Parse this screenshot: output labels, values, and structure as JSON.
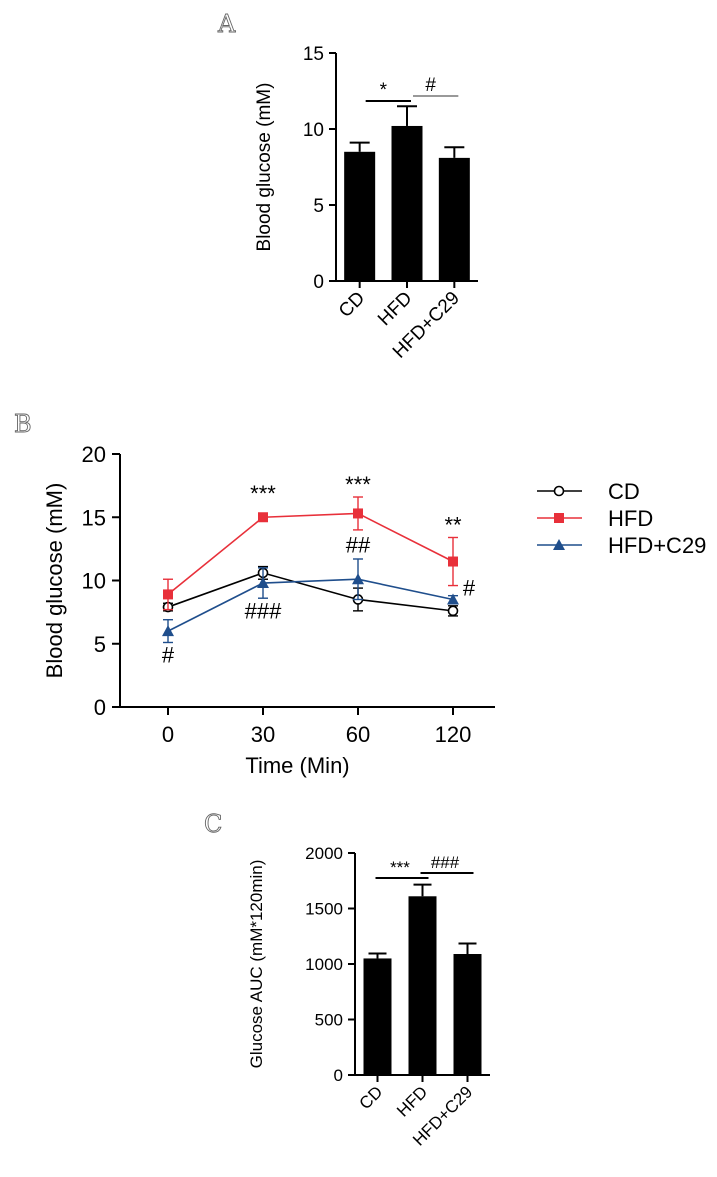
{
  "chart_data": [
    {
      "panel": "A",
      "type": "bar",
      "categories": [
        "CD",
        "HFD",
        "HFD+C29"
      ],
      "values": [
        8.5,
        10.2,
        8.1
      ],
      "errors": [
        0.6,
        1.3,
        0.7
      ],
      "ylabel": "Blood glucose  (mM)",
      "ylim": [
        0,
        15
      ],
      "yticks": [
        0,
        5,
        10,
        15
      ],
      "ytick_labels": [
        "0",
        "5",
        "10",
        "15"
      ],
      "color": "#000000",
      "significance": [
        {
          "from": 0,
          "to": 1,
          "label": "*",
          "color": "#000000"
        },
        {
          "from": 1,
          "to": 2,
          "label": "#",
          "color": "#999999"
        }
      ]
    },
    {
      "panel": "B",
      "type": "line",
      "x": [
        0,
        30,
        60,
        120
      ],
      "xtick_labels": [
        "0",
        "30",
        "60",
        "120"
      ],
      "xlabel": "Time (Min)",
      "ylabel": "Blood glucose (mM)",
      "ylim": [
        0,
        20
      ],
      "yticks": [
        0,
        5,
        10,
        15,
        20
      ],
      "ytick_labels": [
        "0",
        "5",
        "10",
        "15",
        "20"
      ],
      "legend_position": "right",
      "series": [
        {
          "name": "CD",
          "marker": "open-circle",
          "color": "#000000",
          "values": [
            7.9,
            10.6,
            8.5,
            7.6
          ],
          "errors": [
            0.3,
            0.5,
            0.9,
            0.4
          ]
        },
        {
          "name": "HFD",
          "marker": "square",
          "color": "#e8303a",
          "values": [
            8.9,
            15.0,
            15.3,
            11.5
          ],
          "errors": [
            1.2,
            0.2,
            1.3,
            1.9
          ]
        },
        {
          "name": "HFD+C29",
          "marker": "triangle",
          "color": "#1f4e8c",
          "values": [
            6.0,
            9.8,
            10.1,
            8.5
          ],
          "errors": [
            0.9,
            1.2,
            1.6,
            0.3
          ]
        }
      ],
      "annotations": [
        {
          "text": "***",
          "x": 30,
          "y": 16.3
        },
        {
          "text": "***",
          "x": 60,
          "y": 17.0
        },
        {
          "text": "**",
          "x": 120,
          "y": 13.8
        },
        {
          "text": "##",
          "x": 60,
          "y": 12.2
        },
        {
          "text": "###",
          "x": 30,
          "y": 7.0
        },
        {
          "text": "#",
          "x": 0,
          "y": 3.5
        },
        {
          "text": "#",
          "x": 125,
          "y": 8.8
        }
      ]
    },
    {
      "panel": "C",
      "type": "bar",
      "categories": [
        "CD",
        "HFD",
        "HFD+C29"
      ],
      "values": [
        1050,
        1610,
        1090
      ],
      "errors": [
        45,
        105,
        95
      ],
      "ylabel": "Glucose AUC (mM*120min)",
      "ylim": [
        0,
        2000
      ],
      "yticks": [
        0,
        500,
        1000,
        1500,
        2000
      ],
      "ytick_labels": [
        "0",
        "500",
        "1000",
        "1500",
        "2000"
      ],
      "color": "#000000",
      "significance": [
        {
          "from": 0,
          "to": 1,
          "label": "***",
          "color": "#000000"
        },
        {
          "from": 1,
          "to": 2,
          "label": "###",
          "color": "#000000"
        }
      ]
    }
  ]
}
